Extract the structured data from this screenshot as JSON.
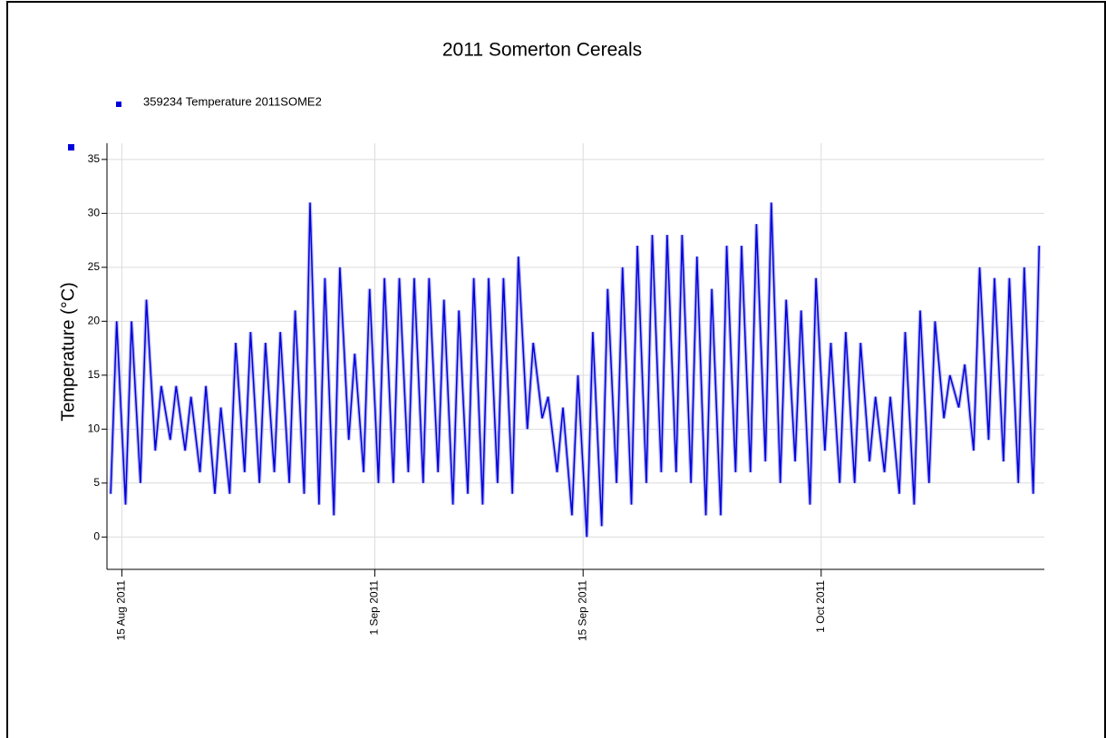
{
  "chart_data": {
    "type": "line",
    "title": "2011 Somerton Cereals",
    "y_label": "Temperature (°C)",
    "x": [
      "2011-08-14",
      "2011-08-15",
      "2011-08-16",
      "2011-08-17",
      "2011-08-18",
      "2011-08-19",
      "2011-08-20",
      "2011-08-21",
      "2011-08-22",
      "2011-08-23",
      "2011-08-24",
      "2011-08-25",
      "2011-08-26",
      "2011-08-27",
      "2011-08-28",
      "2011-08-29",
      "2011-08-30",
      "2011-08-31",
      "2011-09-01",
      "2011-09-02",
      "2011-09-03",
      "2011-09-04",
      "2011-09-05",
      "2011-09-06",
      "2011-09-07",
      "2011-09-08",
      "2011-09-09",
      "2011-09-10",
      "2011-09-11",
      "2011-09-12",
      "2011-09-13",
      "2011-09-14",
      "2011-09-15",
      "2011-09-16",
      "2011-09-17",
      "2011-09-18",
      "2011-09-19",
      "2011-09-20",
      "2011-09-21",
      "2011-09-22",
      "2011-09-23",
      "2011-09-24",
      "2011-09-25",
      "2011-09-26",
      "2011-09-27",
      "2011-09-28",
      "2011-09-29",
      "2011-09-30",
      "2011-10-01",
      "2011-10-02",
      "2011-10-03",
      "2011-10-04",
      "2011-10-05",
      "2011-10-06",
      "2011-10-07",
      "2011-10-08",
      "2011-10-09",
      "2011-10-10",
      "2011-10-11",
      "2011-10-12",
      "2011-10-13",
      "2011-10-14",
      "2011-10-15"
    ],
    "series": [
      {
        "name": "359234  Temperature 2011SOME2",
        "color": "#0000dd",
        "values": [
          [
            4,
            20
          ],
          [
            3,
            20
          ],
          [
            5,
            22
          ],
          [
            8,
            14
          ],
          [
            9,
            14
          ],
          [
            8,
            13
          ],
          [
            6,
            14
          ],
          [
            4,
            12
          ],
          [
            4,
            18
          ],
          [
            6,
            19
          ],
          [
            5,
            18
          ],
          [
            6,
            19
          ],
          [
            5,
            21
          ],
          [
            4,
            31
          ],
          [
            3,
            24
          ],
          [
            2,
            25
          ],
          [
            9,
            17
          ],
          [
            6,
            23
          ],
          [
            5,
            24
          ],
          [
            5,
            24
          ],
          [
            6,
            24
          ],
          [
            5,
            24
          ],
          [
            6,
            22
          ],
          [
            3,
            21
          ],
          [
            4,
            24
          ],
          [
            3,
            24
          ],
          [
            5,
            24
          ],
          [
            4,
            26
          ],
          [
            10,
            18
          ],
          [
            11,
            13
          ],
          [
            6,
            12
          ],
          [
            2,
            15
          ],
          [
            0,
            19
          ],
          [
            1,
            23
          ],
          [
            5,
            25
          ],
          [
            3,
            27
          ],
          [
            5,
            28
          ],
          [
            6,
            28
          ],
          [
            6,
            28
          ],
          [
            5,
            26
          ],
          [
            2,
            23
          ],
          [
            2,
            27
          ],
          [
            6,
            27
          ],
          [
            6,
            29
          ],
          [
            7,
            31
          ],
          [
            5,
            22
          ],
          [
            7,
            21
          ],
          [
            3,
            24
          ],
          [
            8,
            18
          ],
          [
            5,
            19
          ],
          [
            5,
            18
          ],
          [
            7,
            13
          ],
          [
            6,
            13
          ],
          [
            4,
            19
          ],
          [
            3,
            21
          ],
          [
            5,
            20
          ],
          [
            11,
            15
          ],
          [
            12,
            16
          ],
          [
            8,
            25
          ],
          [
            9,
            24
          ],
          [
            7,
            24
          ],
          [
            5,
            25
          ],
          [
            4,
            27
          ]
        ]
      }
    ],
    "xlim": [
      "2011-08-14",
      "2011-10-16"
    ],
    "xticks": [
      {
        "value": "2011-08-15",
        "label": "15 Aug 2011"
      },
      {
        "value": "2011-09-01",
        "label": "1 Sep 2011"
      },
      {
        "value": "2011-09-15",
        "label": "15 Sep 2011"
      },
      {
        "value": "2011-10-01",
        "label": "1 Oct 2011"
      }
    ],
    "ylim": [
      -3,
      36.5
    ],
    "yticks": [
      0,
      5,
      10,
      15,
      20,
      25,
      30,
      35
    ],
    "grid": true
  }
}
